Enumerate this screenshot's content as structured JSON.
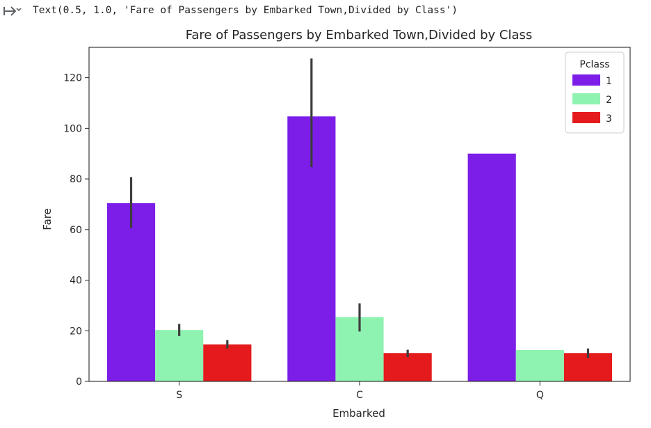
{
  "cell_output": {
    "text": "Text(0.5, 1.0, 'Fare of Passengers by Embarked Town,Divided by Class')",
    "icon": "output-expand-icon"
  },
  "chart_data": {
    "type": "bar",
    "title": "Fare of Passengers by Embarked Town,Divided by Class",
    "xlabel": "Embarked",
    "ylabel": "Fare",
    "categories": [
      "S",
      "C",
      "Q"
    ],
    "ylim": [
      0,
      132
    ],
    "yticks": [
      0,
      20,
      40,
      60,
      80,
      100,
      120
    ],
    "grid": false,
    "legend": {
      "title": "Pclass",
      "position": "top-right"
    },
    "series": [
      {
        "name": "1",
        "color": "#7c1de8",
        "values": [
          70.4,
          104.7,
          90.0
        ],
        "ci": [
          [
            60.6,
            80.7
          ],
          [
            84.7,
            127.6
          ],
          null
        ]
      },
      {
        "name": "2",
        "color": "#8ef2b0",
        "values": [
          20.3,
          25.4,
          12.4
        ],
        "ci": [
          [
            17.9,
            22.7
          ],
          [
            19.7,
            30.8
          ],
          null
        ]
      },
      {
        "name": "3",
        "color": "#e41a1c",
        "values": [
          14.6,
          11.2,
          11.2
        ],
        "ci": [
          [
            13.0,
            16.3
          ],
          [
            9.6,
            12.5
          ],
          [
            9.3,
            13.0
          ]
        ]
      }
    ]
  }
}
